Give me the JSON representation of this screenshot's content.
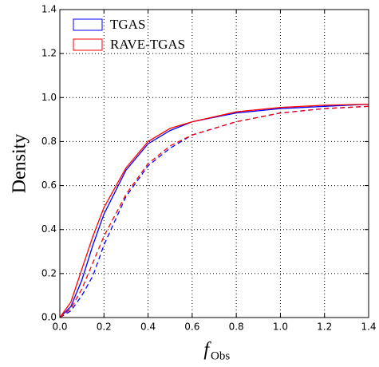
{
  "chart_data": {
    "type": "line",
    "y_label": "Density",
    "x_label": "f",
    "x_label_sub": "Obs",
    "x": [
      0,
      0.05,
      0.1,
      0.15,
      0.2,
      0.3,
      0.4,
      0.5,
      0.6,
      0.8,
      1.0,
      1.2,
      1.4
    ],
    "series": [
      {
        "name": "TGAS",
        "color": "#0000ff",
        "values": [
          0,
          0.05,
          0.17,
          0.33,
          0.47,
          0.67,
          0.79,
          0.85,
          0.89,
          0.93,
          0.95,
          0.96,
          0.97
        ],
        "dashed_values": [
          0,
          0.03,
          0.1,
          0.19,
          0.33,
          0.55,
          0.69,
          0.77,
          0.83,
          0.89,
          0.93,
          0.95,
          0.96
        ]
      },
      {
        "name": "RAVE-TGAS",
        "color": "#ff0000",
        "values": [
          0,
          0.07,
          0.22,
          0.37,
          0.5,
          0.68,
          0.8,
          0.86,
          0.89,
          0.935,
          0.955,
          0.965,
          0.97
        ],
        "dashed_values": [
          0,
          0.04,
          0.13,
          0.25,
          0.37,
          0.56,
          0.7,
          0.78,
          0.83,
          0.89,
          0.93,
          0.95,
          0.96
        ]
      }
    ],
    "xlim": [
      0,
      1.4
    ],
    "ylim": [
      0,
      1.4
    ],
    "xticks": [
      {
        "value": 0,
        "label": "0.0"
      },
      0.2,
      0.4,
      0.6,
      0.8,
      {
        "value": 1,
        "label": "1.0"
      },
      1.2,
      1.4
    ],
    "yticks": [
      {
        "value": 0,
        "label": "0.0"
      },
      0.2,
      0.4,
      0.6,
      0.8,
      {
        "value": 1,
        "label": "1.0"
      },
      1.2,
      1.4
    ],
    "grid": true,
    "legend": "upper left"
  }
}
